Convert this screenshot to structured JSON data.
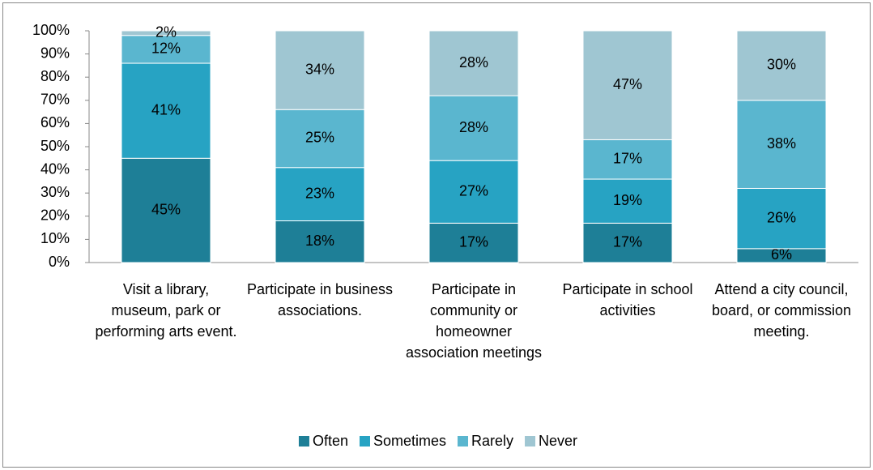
{
  "chart_data": {
    "type": "stacked_bar",
    "categories": [
      "Visit a library, museum, park or performing arts event.",
      "Participate in business associations.",
      "Participate in community or homeowner association meetings",
      "Participate in school activities",
      "Attend a city council, board, or commission meeting."
    ],
    "series": [
      {
        "name": "Often",
        "color": "#1e7f97",
        "values": [
          45,
          18,
          17,
          17,
          6
        ],
        "value_labels": [
          "45%",
          "18%",
          "17%",
          "17%",
          "6%"
        ]
      },
      {
        "name": "Sometimes",
        "color": "#27a3c3",
        "values": [
          41,
          23,
          27,
          19,
          26
        ],
        "value_labels": [
          "41%",
          "23%",
          "27%",
          "19%",
          "26%"
        ]
      },
      {
        "name": "Rarely",
        "color": "#5ab6cf",
        "values": [
          12,
          25,
          28,
          17,
          38
        ],
        "value_labels": [
          "12%",
          "25%",
          "28%",
          "17%",
          "38%"
        ]
      },
      {
        "name": "Never",
        "color": "#9fc6d2",
        "values": [
          2,
          34,
          28,
          47,
          30
        ],
        "value_labels": [
          "2%",
          "34%",
          "28%",
          "47%",
          "30%"
        ]
      }
    ],
    "ylim": [
      0,
      100
    ],
    "yticks": [
      {
        "value": 0,
        "label": "0%"
      },
      {
        "value": 10,
        "label": "10%"
      },
      {
        "value": 20,
        "label": "20%"
      },
      {
        "value": 30,
        "label": "30%"
      },
      {
        "value": 40,
        "label": "40%"
      },
      {
        "value": 50,
        "label": "50%"
      },
      {
        "value": 60,
        "label": "60%"
      },
      {
        "value": 70,
        "label": "70%"
      },
      {
        "value": 80,
        "label": "80%"
      },
      {
        "value": 90,
        "label": "90%"
      },
      {
        "value": 100,
        "label": "100%"
      }
    ],
    "legend": "bottom"
  }
}
